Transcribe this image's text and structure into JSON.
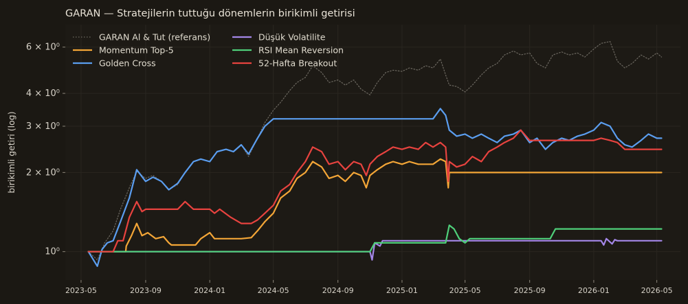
{
  "chart_data": {
    "type": "line",
    "title": "GARAN — Stratejilerin tuttuğu dönemlerin birikimli getirisi",
    "xlabel": "",
    "ylabel": "birikimli getiri (log)",
    "yscale": "log",
    "ylim": [
      0.78,
      7.3
    ],
    "xlim": [
      "2023-04-01",
      "2026-06-15"
    ],
    "grid": true,
    "legend_position": "top-left",
    "x_ticks": [
      "2023-05",
      "2023-09",
      "2024-01",
      "2024-05",
      "2024-09",
      "2025-01",
      "2025-05",
      "2025-09",
      "2026-01",
      "2026-05"
    ],
    "y_ticks": [
      {
        "value": 1,
        "label": "10⁰"
      },
      {
        "value": 2,
        "label": "2 × 10⁰"
      },
      {
        "value": 3,
        "label": "3 × 10⁰"
      },
      {
        "value": 4,
        "label": "4 × 10⁰"
      },
      {
        "value": 6,
        "label": "6 × 10⁰"
      }
    ],
    "series": [
      {
        "name": "GARAN Al & Tut (referans)",
        "color": "#6e6a62",
        "style": "dotted",
        "points": [
          [
            "2023-05-15",
            1.0
          ],
          [
            "2023-06-01",
            0.93
          ],
          [
            "2023-06-15",
            1.08
          ],
          [
            "2023-07-01",
            1.2
          ],
          [
            "2023-07-15",
            1.45
          ],
          [
            "2023-08-01",
            1.75
          ],
          [
            "2023-08-15",
            2.02
          ],
          [
            "2023-09-01",
            1.9
          ],
          [
            "2023-09-15",
            1.95
          ],
          [
            "2023-10-01",
            1.85
          ],
          [
            "2023-10-15",
            1.72
          ],
          [
            "2023-11-01",
            1.8
          ],
          [
            "2023-11-15",
            2.0
          ],
          [
            "2023-12-01",
            2.2
          ],
          [
            "2023-12-15",
            2.25
          ],
          [
            "2024-01-01",
            2.2
          ],
          [
            "2024-01-15",
            2.4
          ],
          [
            "2024-02-01",
            2.45
          ],
          [
            "2024-02-15",
            2.4
          ],
          [
            "2024-03-01",
            2.55
          ],
          [
            "2024-03-15",
            2.3
          ],
          [
            "2024-04-01",
            2.7
          ],
          [
            "2024-04-15",
            3.1
          ],
          [
            "2024-05-01",
            3.45
          ],
          [
            "2024-05-15",
            3.7
          ],
          [
            "2024-06-01",
            4.1
          ],
          [
            "2024-06-15",
            4.4
          ],
          [
            "2024-07-01",
            4.6
          ],
          [
            "2024-07-15",
            5.1
          ],
          [
            "2024-08-01",
            4.8
          ],
          [
            "2024-08-15",
            4.4
          ],
          [
            "2024-09-01",
            4.5
          ],
          [
            "2024-09-15",
            4.3
          ],
          [
            "2024-10-01",
            4.5
          ],
          [
            "2024-10-15",
            4.15
          ],
          [
            "2024-11-01",
            3.95
          ],
          [
            "2024-11-15",
            4.4
          ],
          [
            "2024-12-01",
            4.8
          ],
          [
            "2024-12-15",
            4.9
          ],
          [
            "2025-01-01",
            4.85
          ],
          [
            "2025-01-15",
            5.0
          ],
          [
            "2025-02-01",
            4.9
          ],
          [
            "2025-02-15",
            5.1
          ],
          [
            "2025-03-01",
            5.0
          ],
          [
            "2025-03-15",
            5.4
          ],
          [
            "2025-03-25",
            4.7
          ],
          [
            "2025-04-01",
            4.3
          ],
          [
            "2025-04-15",
            4.25
          ],
          [
            "2025-05-01",
            4.05
          ],
          [
            "2025-05-15",
            4.3
          ],
          [
            "2025-06-01",
            4.7
          ],
          [
            "2025-06-15",
            5.0
          ],
          [
            "2025-07-01",
            5.2
          ],
          [
            "2025-07-15",
            5.6
          ],
          [
            "2025-08-01",
            5.8
          ],
          [
            "2025-08-15",
            5.6
          ],
          [
            "2025-09-01",
            5.7
          ],
          [
            "2025-09-15",
            5.2
          ],
          [
            "2025-10-01",
            5.0
          ],
          [
            "2025-10-15",
            5.6
          ],
          [
            "2025-11-01",
            5.75
          ],
          [
            "2025-11-15",
            5.6
          ],
          [
            "2025-12-01",
            5.7
          ],
          [
            "2025-12-15",
            5.5
          ],
          [
            "2026-01-01",
            5.9
          ],
          [
            "2026-01-15",
            6.2
          ],
          [
            "2026-02-01",
            6.3
          ],
          [
            "2026-02-15",
            5.3
          ],
          [
            "2026-03-01",
            5.0
          ],
          [
            "2026-03-15",
            5.2
          ],
          [
            "2026-04-01",
            5.6
          ],
          [
            "2026-04-15",
            5.4
          ],
          [
            "2026-05-01",
            5.7
          ],
          [
            "2026-05-10",
            5.5
          ]
        ]
      },
      {
        "name": "Momentum Top-5",
        "color": "#f4a637",
        "style": "solid",
        "points": [
          [
            "2023-05-15",
            1.0
          ],
          [
            "2023-07-25",
            1.0
          ],
          [
            "2023-07-26",
            1.05
          ],
          [
            "2023-08-05",
            1.15
          ],
          [
            "2023-08-15",
            1.28
          ],
          [
            "2023-08-25",
            1.15
          ],
          [
            "2023-09-05",
            1.18
          ],
          [
            "2023-09-20",
            1.12
          ],
          [
            "2023-10-05",
            1.14
          ],
          [
            "2023-10-15",
            1.08
          ],
          [
            "2023-10-20",
            1.06
          ],
          [
            "2023-12-05",
            1.06
          ],
          [
            "2023-12-15",
            1.12
          ],
          [
            "2024-01-01",
            1.18
          ],
          [
            "2024-01-10",
            1.12
          ],
          [
            "2024-02-01",
            1.12
          ],
          [
            "2024-03-01",
            1.12
          ],
          [
            "2024-03-20",
            1.13
          ],
          [
            "2024-04-01",
            1.2
          ],
          [
            "2024-04-15",
            1.3
          ],
          [
            "2024-05-01",
            1.4
          ],
          [
            "2024-05-15",
            1.6
          ],
          [
            "2024-06-01",
            1.7
          ],
          [
            "2024-06-15",
            1.9
          ],
          [
            "2024-07-01",
            2.0
          ],
          [
            "2024-07-15",
            2.2
          ],
          [
            "2024-08-01",
            2.1
          ],
          [
            "2024-08-15",
            1.9
          ],
          [
            "2024-09-01",
            1.95
          ],
          [
            "2024-09-15",
            1.85
          ],
          [
            "2024-10-01",
            2.0
          ],
          [
            "2024-10-15",
            1.95
          ],
          [
            "2024-10-25",
            1.75
          ],
          [
            "2024-11-01",
            1.95
          ],
          [
            "2024-11-15",
            2.05
          ],
          [
            "2024-12-01",
            2.15
          ],
          [
            "2024-12-15",
            2.2
          ],
          [
            "2025-01-01",
            2.15
          ],
          [
            "2025-01-15",
            2.2
          ],
          [
            "2025-02-01",
            2.15
          ],
          [
            "2025-03-01",
            2.15
          ],
          [
            "2025-03-15",
            2.25
          ],
          [
            "2025-03-25",
            2.2
          ],
          [
            "2025-03-30",
            1.75
          ],
          [
            "2025-04-01",
            2.0
          ],
          [
            "2025-05-01",
            2.0
          ],
          [
            "2026-05-10",
            2.0
          ]
        ]
      },
      {
        "name": "Golden Cross",
        "color": "#5b9ef0",
        "style": "solid",
        "points": [
          [
            "2023-05-15",
            1.0
          ],
          [
            "2023-06-01",
            0.88
          ],
          [
            "2023-06-10",
            1.02
          ],
          [
            "2023-06-20",
            1.08
          ],
          [
            "2023-07-01",
            1.1
          ],
          [
            "2023-07-15",
            1.3
          ],
          [
            "2023-08-01",
            1.6
          ],
          [
            "2023-08-15",
            2.05
          ],
          [
            "2023-09-01",
            1.85
          ],
          [
            "2023-09-15",
            1.92
          ],
          [
            "2023-10-01",
            1.85
          ],
          [
            "2023-10-15",
            1.72
          ],
          [
            "2023-11-01",
            1.82
          ],
          [
            "2023-11-15",
            2.0
          ],
          [
            "2023-12-01",
            2.2
          ],
          [
            "2023-12-15",
            2.25
          ],
          [
            "2024-01-01",
            2.2
          ],
          [
            "2024-01-15",
            2.4
          ],
          [
            "2024-02-01",
            2.45
          ],
          [
            "2024-02-15",
            2.4
          ],
          [
            "2024-03-01",
            2.55
          ],
          [
            "2024-03-15",
            2.35
          ],
          [
            "2024-04-01",
            2.7
          ],
          [
            "2024-04-15",
            3.0
          ],
          [
            "2024-05-01",
            3.2
          ],
          [
            "2025-03-01",
            3.2
          ],
          [
            "2025-03-15",
            3.5
          ],
          [
            "2025-03-25",
            3.3
          ],
          [
            "2025-04-01",
            2.9
          ],
          [
            "2025-04-15",
            2.75
          ],
          [
            "2025-05-01",
            2.8
          ],
          [
            "2025-05-15",
            2.7
          ],
          [
            "2025-06-01",
            2.8
          ],
          [
            "2025-06-15",
            2.7
          ],
          [
            "2025-07-01",
            2.6
          ],
          [
            "2025-07-15",
            2.75
          ],
          [
            "2025-08-01",
            2.8
          ],
          [
            "2025-08-15",
            2.9
          ],
          [
            "2025-09-01",
            2.6
          ],
          [
            "2025-09-15",
            2.7
          ],
          [
            "2025-10-01",
            2.45
          ],
          [
            "2025-10-15",
            2.6
          ],
          [
            "2025-11-01",
            2.7
          ],
          [
            "2025-11-15",
            2.65
          ],
          [
            "2025-12-01",
            2.75
          ],
          [
            "2025-12-15",
            2.8
          ],
          [
            "2026-01-01",
            2.9
          ],
          [
            "2026-01-15",
            3.1
          ],
          [
            "2026-02-01",
            3.0
          ],
          [
            "2026-02-15",
            2.7
          ],
          [
            "2026-03-01",
            2.55
          ],
          [
            "2026-03-15",
            2.5
          ],
          [
            "2026-04-01",
            2.65
          ],
          [
            "2026-04-15",
            2.8
          ],
          [
            "2026-05-01",
            2.7
          ],
          [
            "2026-05-10",
            2.7
          ]
        ]
      },
      {
        "name": "Düşük Volatilite",
        "color": "#a487e8",
        "style": "solid",
        "points": [
          [
            "2023-05-15",
            1.0
          ],
          [
            "2024-11-01",
            1.0
          ],
          [
            "2024-11-05",
            0.93
          ],
          [
            "2024-11-10",
            1.08
          ],
          [
            "2024-11-20",
            1.05
          ],
          [
            "2024-11-25",
            1.1
          ],
          [
            "2025-02-01",
            1.1
          ],
          [
            "2025-04-01",
            1.1
          ],
          [
            "2025-06-01",
            1.1
          ],
          [
            "2025-08-01",
            1.1
          ],
          [
            "2025-10-01",
            1.1
          ],
          [
            "2025-12-01",
            1.1
          ],
          [
            "2026-01-15",
            1.1
          ],
          [
            "2026-01-20",
            1.06
          ],
          [
            "2026-01-25",
            1.12
          ],
          [
            "2026-02-05",
            1.07
          ],
          [
            "2026-02-10",
            1.11
          ],
          [
            "2026-02-15",
            1.1
          ],
          [
            "2026-05-10",
            1.1
          ]
        ]
      },
      {
        "name": "RSI Mean Reversion",
        "color": "#4fd07a",
        "style": "solid",
        "points": [
          [
            "2023-05-15",
            1.0
          ],
          [
            "2024-11-01",
            1.0
          ],
          [
            "2024-11-10",
            1.08
          ],
          [
            "2025-03-25",
            1.08
          ],
          [
            "2025-04-01",
            1.26
          ],
          [
            "2025-04-10",
            1.22
          ],
          [
            "2025-04-20",
            1.12
          ],
          [
            "2025-05-01",
            1.08
          ],
          [
            "2025-05-10",
            1.12
          ],
          [
            "2025-10-10",
            1.12
          ],
          [
            "2025-10-20",
            1.22
          ],
          [
            "2025-11-01",
            1.22
          ],
          [
            "2026-05-10",
            1.22
          ]
        ]
      },
      {
        "name": "52-Hafta Breakout",
        "color": "#e8433f",
        "style": "solid",
        "points": [
          [
            "2023-05-15",
            1.0
          ],
          [
            "2023-07-01",
            1.0
          ],
          [
            "2023-07-10",
            1.1
          ],
          [
            "2023-07-20",
            1.1
          ],
          [
            "2023-08-01",
            1.35
          ],
          [
            "2023-08-15",
            1.55
          ],
          [
            "2023-08-25",
            1.42
          ],
          [
            "2023-09-01",
            1.45
          ],
          [
            "2023-11-01",
            1.45
          ],
          [
            "2023-11-15",
            1.55
          ],
          [
            "2023-12-01",
            1.45
          ],
          [
            "2024-01-01",
            1.45
          ],
          [
            "2024-01-10",
            1.4
          ],
          [
            "2024-01-20",
            1.45
          ],
          [
            "2024-02-10",
            1.35
          ],
          [
            "2024-03-01",
            1.28
          ],
          [
            "2024-03-20",
            1.28
          ],
          [
            "2024-04-01",
            1.32
          ],
          [
            "2024-04-15",
            1.4
          ],
          [
            "2024-05-01",
            1.5
          ],
          [
            "2024-05-15",
            1.7
          ],
          [
            "2024-06-01",
            1.8
          ],
          [
            "2024-06-15",
            2.0
          ],
          [
            "2024-07-01",
            2.2
          ],
          [
            "2024-07-15",
            2.5
          ],
          [
            "2024-08-01",
            2.4
          ],
          [
            "2024-08-15",
            2.15
          ],
          [
            "2024-09-01",
            2.2
          ],
          [
            "2024-09-15",
            2.05
          ],
          [
            "2024-10-01",
            2.2
          ],
          [
            "2024-10-15",
            2.15
          ],
          [
            "2024-10-25",
            1.95
          ],
          [
            "2024-11-01",
            2.15
          ],
          [
            "2024-11-15",
            2.3
          ],
          [
            "2024-12-01",
            2.4
          ],
          [
            "2024-12-15",
            2.5
          ],
          [
            "2025-01-01",
            2.45
          ],
          [
            "2025-01-15",
            2.5
          ],
          [
            "2025-02-01",
            2.45
          ],
          [
            "2025-02-15",
            2.6
          ],
          [
            "2025-03-01",
            2.5
          ],
          [
            "2025-03-15",
            2.6
          ],
          [
            "2025-03-25",
            2.5
          ],
          [
            "2025-03-30",
            1.85
          ],
          [
            "2025-04-01",
            2.2
          ],
          [
            "2025-04-15",
            2.1
          ],
          [
            "2025-05-01",
            2.15
          ],
          [
            "2025-05-15",
            2.3
          ],
          [
            "2025-06-01",
            2.2
          ],
          [
            "2025-06-15",
            2.4
          ],
          [
            "2025-07-01",
            2.5
          ],
          [
            "2025-07-15",
            2.6
          ],
          [
            "2025-08-01",
            2.7
          ],
          [
            "2025-08-15",
            2.9
          ],
          [
            "2025-09-01",
            2.65
          ],
          [
            "2026-01-01",
            2.65
          ],
          [
            "2026-01-15",
            2.7
          ],
          [
            "2026-02-01",
            2.65
          ],
          [
            "2026-02-15",
            2.6
          ],
          [
            "2026-03-01",
            2.45
          ],
          [
            "2026-05-10",
            2.45
          ]
        ]
      }
    ]
  }
}
